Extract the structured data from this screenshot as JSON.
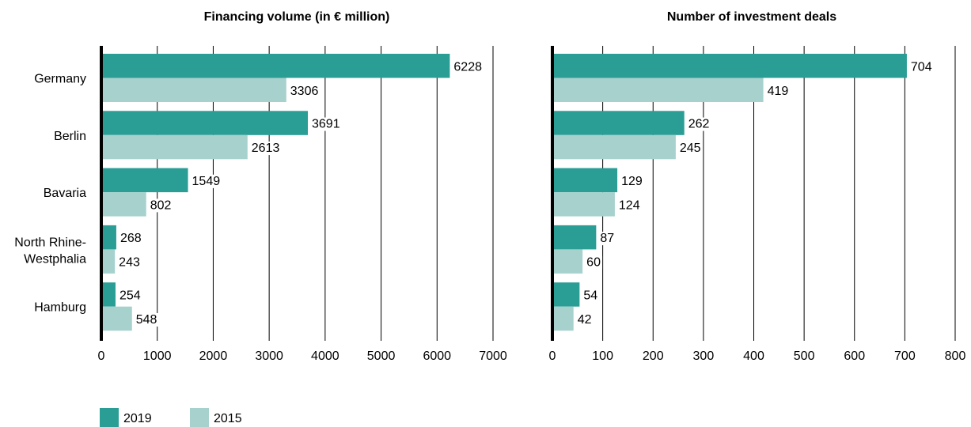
{
  "colors": {
    "series_2019": "#2a9d95",
    "series_2015": "#a6d1cd",
    "grid": "#000000"
  },
  "chart_data": [
    {
      "type": "bar",
      "orientation": "horizontal",
      "title": "Financing volume (in € million)",
      "categories": [
        "Germany",
        "Berlin",
        "Bavaria",
        "North Rhine-\nWestphalia",
        "Hamburg"
      ],
      "series": [
        {
          "name": "2019",
          "values": [
            6228,
            3691,
            1549,
            268,
            254
          ]
        },
        {
          "name": "2015",
          "values": [
            3306,
            2613,
            802,
            243,
            548
          ]
        }
      ],
      "xlim": [
        0,
        7000
      ],
      "ticks": [
        0,
        1000,
        2000,
        3000,
        4000,
        5000,
        6000,
        7000
      ],
      "grid": true,
      "legend": "bottom-left"
    },
    {
      "type": "bar",
      "orientation": "horizontal",
      "title": "Number of investment deals",
      "categories": [
        "Germany",
        "Berlin",
        "Bavaria",
        "North Rhine-\nWestphalia",
        "Hamburg"
      ],
      "series": [
        {
          "name": "2019",
          "values": [
            704,
            262,
            129,
            87,
            54
          ]
        },
        {
          "name": "2015",
          "values": [
            419,
            245,
            124,
            60,
            42
          ]
        }
      ],
      "xlim": [
        0,
        800
      ],
      "ticks": [
        0,
        100,
        200,
        300,
        400,
        500,
        600,
        700,
        800
      ],
      "grid": true,
      "legend": "bottom-left"
    }
  ],
  "legend": {
    "items": [
      {
        "label": "2019"
      },
      {
        "label": "2015"
      }
    ]
  }
}
